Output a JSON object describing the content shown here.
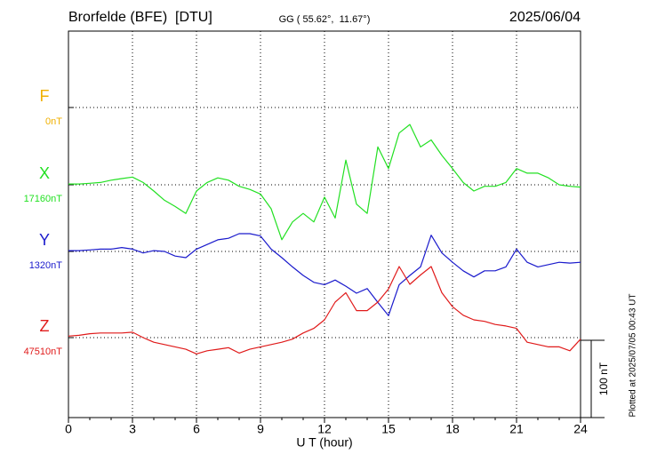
{
  "chart_data": {
    "type": "line",
    "title": "Brorfelde (BFE)  [DTU]",
    "subtitle": "GG ( 55.62°,  11.67°)",
    "date": "2025/06/04",
    "xlabel": "U T (hour)",
    "footnote": "Plotted at 2025/07/05 00:43 UT",
    "xlim": [
      0,
      24
    ],
    "xticks": [
      0,
      3,
      6,
      9,
      12,
      15,
      18,
      21,
      24
    ],
    "grid": true,
    "scale_bar": {
      "value": 100,
      "label": "100 nT"
    },
    "x": [
      0,
      0.5,
      1,
      1.5,
      2,
      2.5,
      3,
      3.5,
      4,
      4.5,
      5,
      5.5,
      6,
      6.5,
      7,
      7.5,
      8,
      8.5,
      9,
      9.5,
      10,
      10.5,
      11,
      11.5,
      12,
      12.5,
      13,
      13.5,
      14,
      14.5,
      15,
      15.5,
      16,
      16.5,
      17,
      17.5,
      18,
      18.5,
      19,
      19.5,
      20,
      20.5,
      21,
      21.5,
      22,
      22.5,
      23,
      23.5,
      24
    ],
    "series": [
      {
        "name": "F",
        "color": "#f0b000",
        "baseline": {
          "value": 0,
          "label": "0nT"
        },
        "values": [
          null,
          null,
          null,
          null,
          null,
          null,
          null,
          null,
          null,
          null,
          null,
          null,
          null,
          null,
          null,
          null,
          null,
          null,
          null,
          null,
          null,
          null,
          null,
          null,
          null,
          null,
          null,
          null,
          null,
          null,
          null,
          null,
          null,
          null,
          null,
          null,
          null,
          null,
          null,
          null,
          null,
          null,
          null,
          null,
          null,
          null,
          null,
          null,
          null
        ]
      },
      {
        "name": "X",
        "color": "#22e022",
        "baseline": {
          "value": 17160,
          "label": "17160nT"
        },
        "values": [
          17161,
          17161,
          17162,
          17163,
          17166,
          17168,
          17170,
          17163,
          17152,
          17140,
          17132,
          17123,
          17152,
          17163,
          17169,
          17166,
          17158,
          17154,
          17148,
          17129,
          17089,
          17112,
          17123,
          17112,
          17144,
          17117,
          17192,
          17135,
          17123,
          17209,
          17181,
          17227,
          17238,
          17209,
          17218,
          17198,
          17181,
          17163,
          17152,
          17158,
          17158,
          17163,
          17181,
          17175,
          17175,
          17169,
          17160,
          17158,
          17157
        ]
      },
      {
        "name": "Y",
        "color": "#1a1acc",
        "baseline": {
          "value": 1320,
          "label": "1320nT"
        },
        "values": [
          1321,
          1321,
          1322,
          1323,
          1323,
          1325,
          1323,
          1318,
          1321,
          1320,
          1314,
          1312,
          1323,
          1329,
          1335,
          1337,
          1343,
          1343,
          1340,
          1323,
          1312,
          1300,
          1289,
          1280,
          1277,
          1283,
          1275,
          1266,
          1272,
          1254,
          1237,
          1277,
          1289,
          1300,
          1341,
          1318,
          1306,
          1295,
          1287,
          1295,
          1295,
          1300,
          1323,
          1306,
          1300,
          1303,
          1306,
          1305,
          1306
        ]
      },
      {
        "name": "Z",
        "color": "#e01a1a",
        "baseline": {
          "value": 47510,
          "label": "47510nT"
        },
        "values": [
          47512,
          47513,
          47515,
          47516,
          47516,
          47516,
          47517,
          47510,
          47504,
          47501,
          47498,
          47495,
          47489,
          47493,
          47495,
          47497,
          47490,
          47495,
          47498,
          47501,
          47504,
          47508,
          47516,
          47522,
          47533,
          47556,
          47568,
          47545,
          47545,
          47556,
          47573,
          47602,
          47579,
          47591,
          47602,
          47568,
          47550,
          47539,
          47533,
          47531,
          47527,
          47525,
          47522,
          47504,
          47501,
          47498,
          47498,
          47493,
          47508
        ]
      }
    ]
  }
}
